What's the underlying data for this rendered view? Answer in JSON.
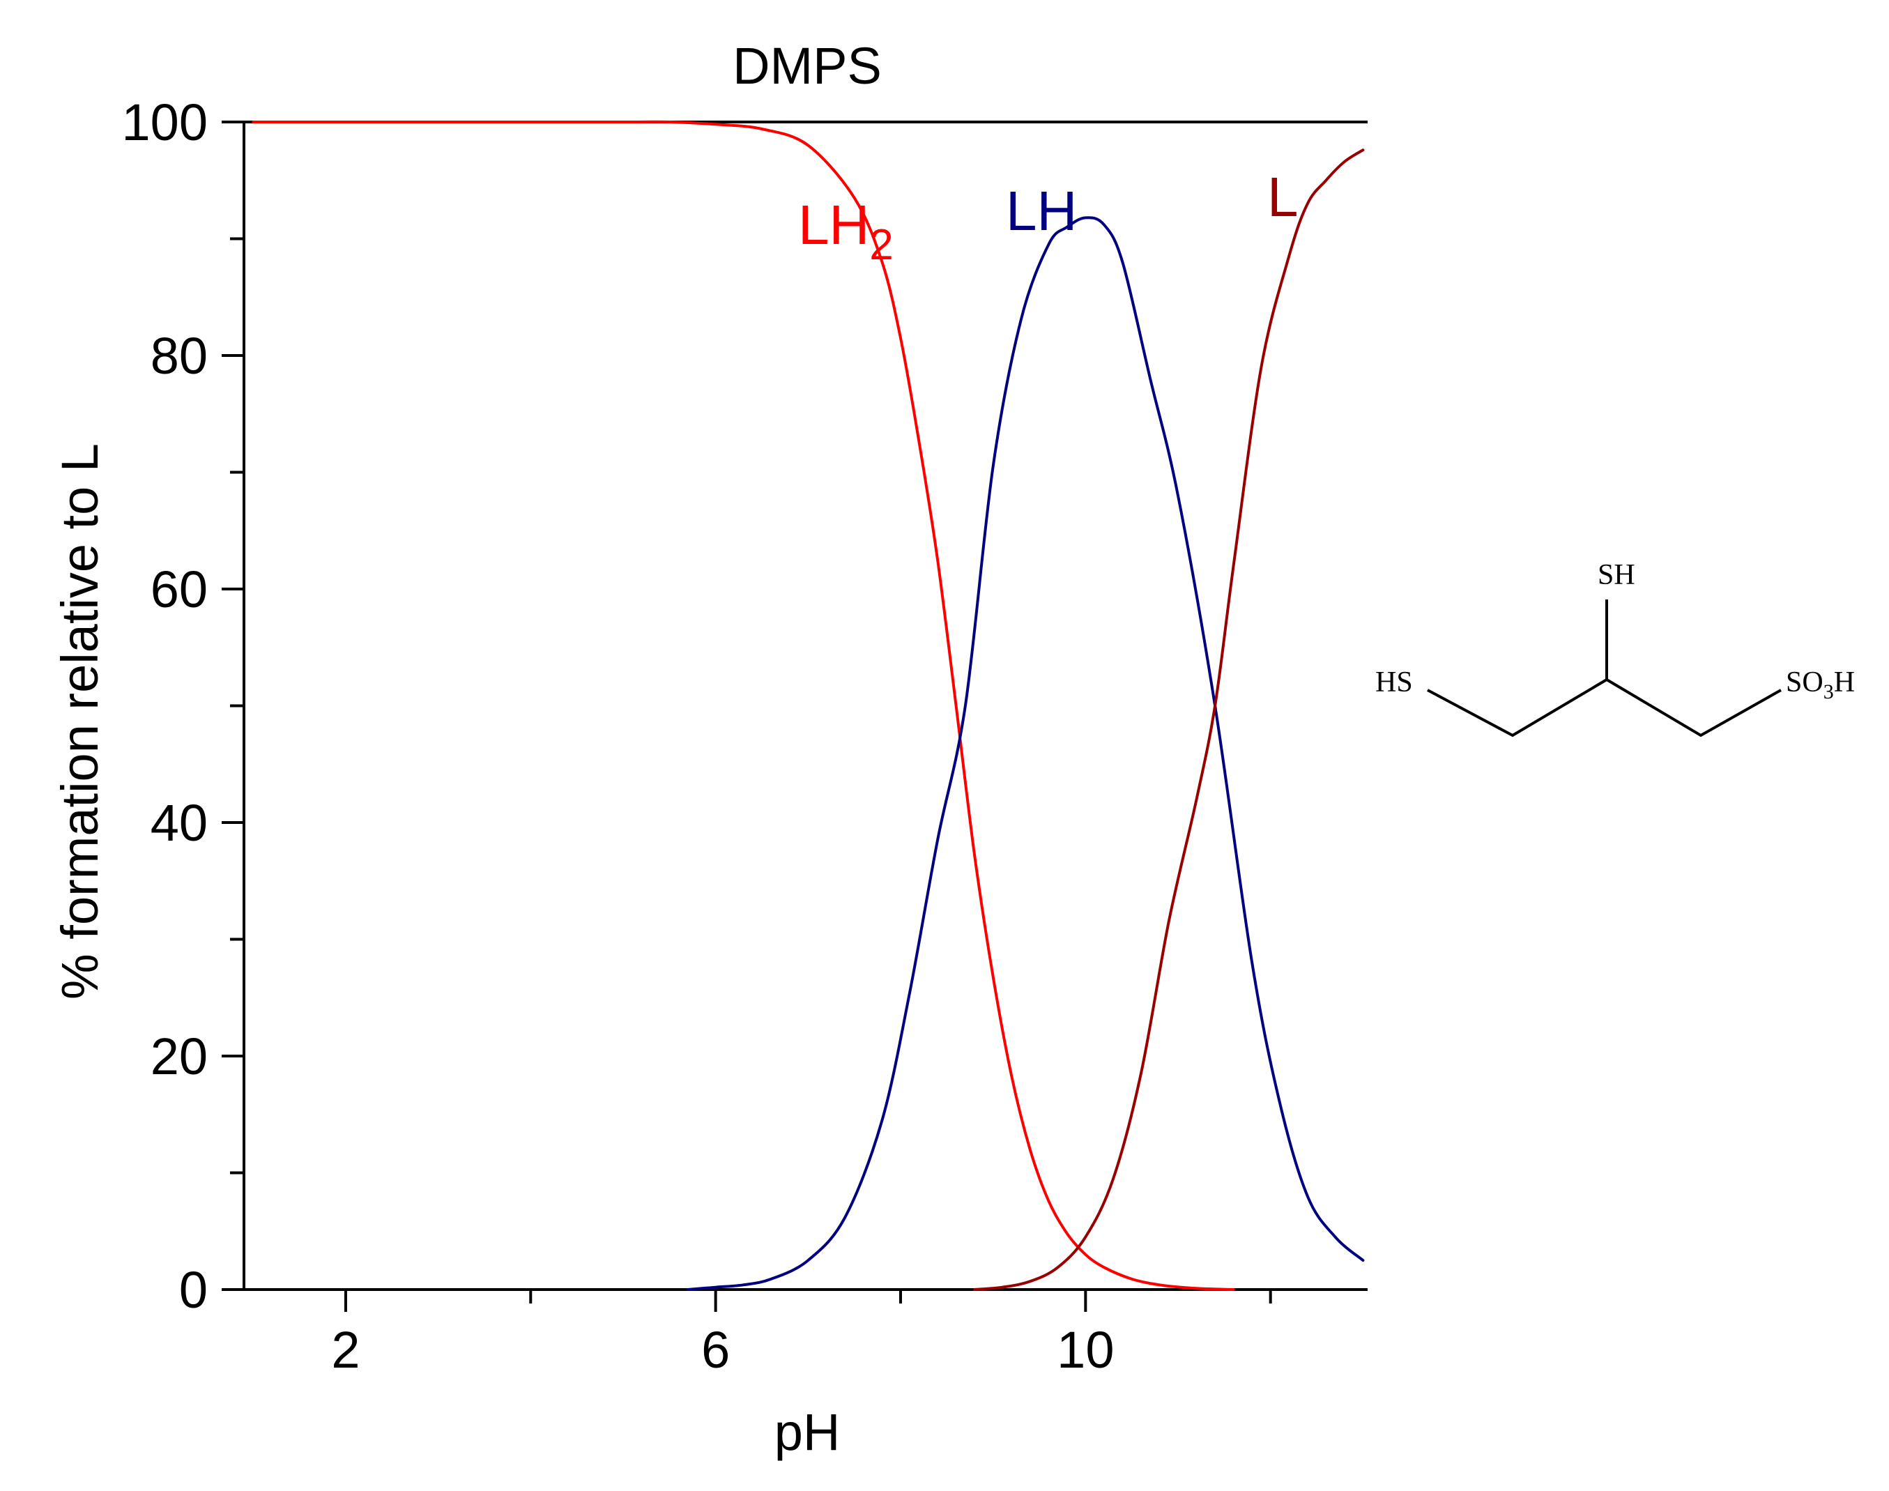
{
  "chart_data": {
    "type": "line",
    "title": "DMPS",
    "xlabel": "pH",
    "ylabel": "% formation relative to L",
    "xlim": [
      0.9,
      13.05
    ],
    "ylim": [
      0,
      100
    ],
    "x_ticks": [
      2,
      6,
      10
    ],
    "x_minor_ticks": [
      4,
      8,
      12
    ],
    "y_ticks": [
      0,
      20,
      40,
      60,
      80,
      100
    ],
    "y_minor_ticks": [
      10,
      30,
      50,
      70,
      90
    ],
    "grid": false,
    "pKa": [
      8.7,
      11.4
    ],
    "series": [
      {
        "name": "LH",
        "label_main": "LH",
        "label_sub": "2",
        "color": "#ff0000",
        "x": [
          1.0,
          2.0,
          3.0,
          4.0,
          5.0,
          5.5,
          6.0,
          6.5,
          7.0,
          7.5,
          7.8,
          8.0,
          8.2,
          8.4,
          8.6,
          8.8,
          9.0,
          9.2,
          9.4,
          9.6,
          9.8,
          10.0,
          10.2,
          10.5,
          10.8,
          11.2,
          11.6
        ],
        "y": [
          100,
          100,
          100,
          100,
          100,
          100,
          99.8,
          99.4,
          98.0,
          93.5,
          88.0,
          81.5,
          72.6,
          62.5,
          50.0,
          37.2,
          26.8,
          18.3,
          12.0,
          7.6,
          4.8,
          3.0,
          1.9,
          0.9,
          0.4,
          0.1,
          0.0
        ]
      },
      {
        "name": "LH",
        "label_main": "LH",
        "label_sub": "",
        "color": "#000080",
        "x": [
          5.7,
          6.0,
          6.3,
          6.6,
          7.0,
          7.4,
          7.8,
          8.1,
          8.4,
          8.7,
          9.0,
          9.3,
          9.6,
          9.8,
          10.0,
          10.2,
          10.4,
          10.7,
          11.0,
          11.4,
          11.8,
          12.1,
          12.4,
          12.7,
          13.0
        ],
        "y": [
          0.0,
          0.2,
          0.4,
          0.9,
          2.5,
          6.2,
          14.5,
          25.5,
          38.5,
          50.0,
          70.5,
          83.0,
          89.5,
          91.0,
          91.8,
          91.2,
          88.0,
          78.0,
          68.0,
          50.0,
          28.0,
          16.0,
          8.0,
          4.5,
          2.5
        ]
      },
      {
        "name": "L",
        "label_main": "L",
        "label_sub": "",
        "color": "#990000",
        "x": [
          8.8,
          9.1,
          9.4,
          9.7,
          10.0,
          10.3,
          10.6,
          10.9,
          11.2,
          11.4,
          11.6,
          11.9,
          12.2,
          12.4,
          12.6,
          12.8,
          13.0
        ],
        "y": [
          0.0,
          0.2,
          0.7,
          1.9,
          4.5,
          9.5,
          18.5,
          31.5,
          42.0,
          50.0,
          62.0,
          79.0,
          88.5,
          93.0,
          95.0,
          96.6,
          97.6
        ]
      }
    ]
  },
  "structure": {
    "label_hs": "HS",
    "label_sh": "SH",
    "label_so3h_main": "SO",
    "label_so3h_sub": "3",
    "label_so3h_tail": "H"
  }
}
